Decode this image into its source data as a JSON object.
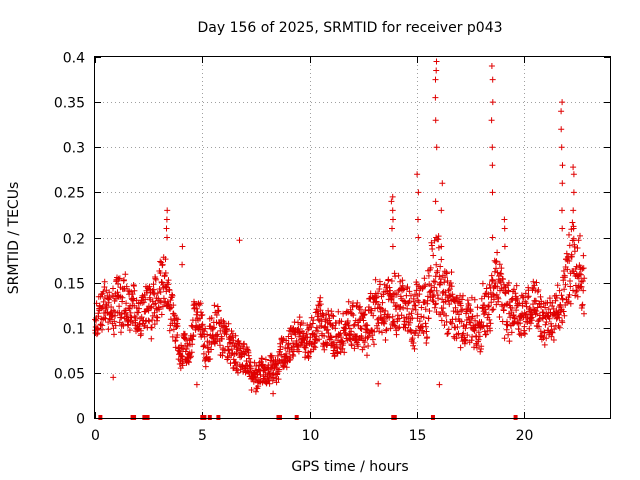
{
  "chart_data": {
    "type": "scatter",
    "title": "Day 156 of 2025, SRMTID for receiver p043",
    "xlabel": "GPS time / hours",
    "ylabel": "SRMTID / TECUs",
    "xlim": [
      0,
      24
    ],
    "ylim": [
      0,
      0.4
    ],
    "xticks": [
      0,
      5,
      10,
      15,
      20
    ],
    "xtick_labels": [
      "0",
      "5",
      "10",
      "15",
      "20"
    ],
    "yticks": [
      0,
      0.05,
      0.1,
      0.15,
      0.2,
      0.25,
      0.3,
      0.35,
      0.4
    ],
    "ytick_labels": [
      "0",
      "0.05",
      "0.1",
      "0.15",
      "0.2",
      "0.25",
      "0.3",
      "0.35",
      "0.4"
    ],
    "grid": true,
    "marker": "+",
    "color": "#e00000",
    "point_spacing_hours": 0.0125,
    "envelope": {
      "hours": [
        0,
        0.5,
        1,
        1.5,
        2,
        2.5,
        3,
        3.3,
        3.6,
        4,
        4.4,
        4.8,
        5.2,
        5.6,
        6,
        6.5,
        7,
        7.5,
        8,
        8.5,
        9,
        9.5,
        10,
        10.5,
        11,
        11.5,
        12,
        12.5,
        13,
        13.5,
        13.9,
        14.3,
        14.8,
        15.3,
        15.7,
        16,
        16.3,
        16.8,
        17.3,
        17.8,
        18.2,
        18.6,
        19,
        19.4,
        19.8,
        20.2,
        20.6,
        21,
        21.4,
        21.8,
        22,
        22.2,
        22.5,
        22.8
      ],
      "center": [
        0.11,
        0.12,
        0.12,
        0.13,
        0.11,
        0.12,
        0.14,
        0.15,
        0.12,
        0.07,
        0.07,
        0.11,
        0.08,
        0.1,
        0.09,
        0.07,
        0.06,
        0.05,
        0.05,
        0.06,
        0.08,
        0.09,
        0.09,
        0.1,
        0.1,
        0.09,
        0.1,
        0.1,
        0.11,
        0.12,
        0.14,
        0.12,
        0.11,
        0.13,
        0.15,
        0.16,
        0.13,
        0.11,
        0.1,
        0.11,
        0.12,
        0.14,
        0.13,
        0.12,
        0.12,
        0.12,
        0.13,
        0.11,
        0.11,
        0.13,
        0.15,
        0.18,
        0.17,
        0.16
      ],
      "spread": [
        0.03,
        0.035,
        0.04,
        0.035,
        0.03,
        0.035,
        0.04,
        0.04,
        0.035,
        0.025,
        0.025,
        0.03,
        0.03,
        0.03,
        0.03,
        0.03,
        0.025,
        0.02,
        0.02,
        0.02,
        0.025,
        0.025,
        0.025,
        0.03,
        0.03,
        0.03,
        0.03,
        0.035,
        0.04,
        0.045,
        0.05,
        0.04,
        0.04,
        0.05,
        0.05,
        0.06,
        0.05,
        0.04,
        0.035,
        0.035,
        0.045,
        0.05,
        0.045,
        0.04,
        0.035,
        0.035,
        0.035,
        0.03,
        0.03,
        0.04,
        0.05,
        0.06,
        0.05,
        0.05
      ]
    },
    "spikes": [
      {
        "hour": 3.35,
        "values": [
          0.2,
          0.21,
          0.22,
          0.23
        ]
      },
      {
        "hour": 4.05,
        "values": [
          0.17,
          0.19
        ]
      },
      {
        "hour": 6.75,
        "values": [
          0.197
        ]
      },
      {
        "hour": 13.85,
        "values": [
          0.19,
          0.21,
          0.22,
          0.23,
          0.24,
          0.245
        ]
      },
      {
        "hour": 15.05,
        "values": [
          0.2,
          0.22,
          0.25,
          0.27
        ]
      },
      {
        "hour": 15.9,
        "values": [
          0.2,
          0.24,
          0.3,
          0.33,
          0.355,
          0.375,
          0.395,
          0.385
        ]
      },
      {
        "hour": 16.15,
        "values": [
          0.19,
          0.23,
          0.26
        ]
      },
      {
        "hour": 18.5,
        "values": [
          0.2,
          0.25,
          0.28,
          0.3,
          0.33,
          0.35,
          0.39,
          0.375
        ]
      },
      {
        "hour": 19.1,
        "values": [
          0.19,
          0.21,
          0.22
        ]
      },
      {
        "hour": 21.75,
        "values": [
          0.21,
          0.23,
          0.26,
          0.28,
          0.3,
          0.32,
          0.34,
          0.35
        ]
      },
      {
        "hour": 22.3,
        "values": [
          0.21,
          0.23,
          0.25,
          0.27,
          0.278
        ]
      }
    ],
    "low_outliers": [
      {
        "hour": 16.05,
        "value": 0.037
      },
      {
        "hour": 13.2,
        "value": 0.038
      },
      {
        "hour": 0.85,
        "value": 0.045
      },
      {
        "hour": 4.75,
        "value": 0.037
      },
      {
        "hour": 8.3,
        "value": 0.027
      }
    ],
    "zero_gap_markers": [
      0.25,
      1.75,
      1.82,
      2.3,
      2.45,
      5.0,
      5.1,
      5.35,
      5.75,
      8.55,
      8.62,
      9.4,
      13.9,
      13.97,
      15.75,
      19.6
    ]
  }
}
